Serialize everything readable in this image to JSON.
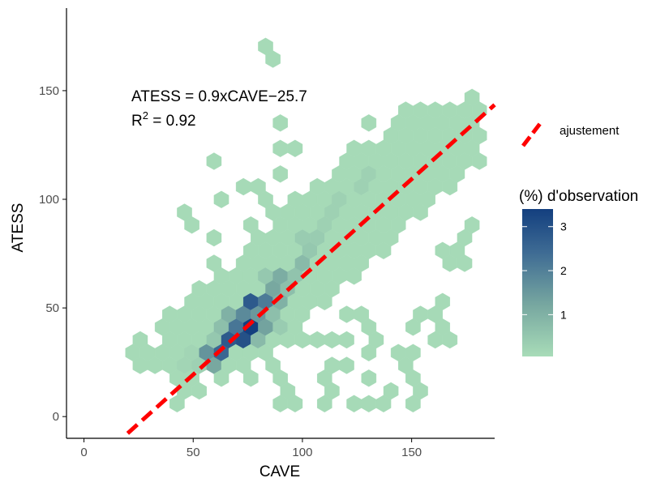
{
  "chart_data": {
    "type": "heatmap",
    "subtype": "hexbin",
    "xlabel": "CAVE",
    "ylabel": "ATESS",
    "xlim": [
      -8,
      188
    ],
    "ylim": [
      -10,
      188
    ],
    "x_ticks": [
      0,
      50,
      100,
      150
    ],
    "y_ticks": [
      0,
      50,
      100,
      150
    ],
    "annotation": {
      "equation": "ATESS = 0.9xCAVE−25.7",
      "r2_prefix": "R",
      "r2_sup": "2",
      "r2_value": " = 0.92"
    },
    "fit_line": {
      "name": "ajustement",
      "slope": 0.9,
      "intercept": -25.7,
      "x_range": [
        20,
        188
      ],
      "color": "#ff0000"
    },
    "legend": {
      "line_label": "ajustement",
      "color_title": "(%) d'observation",
      "color_ticks": [
        1,
        2,
        3
      ],
      "color_range": [
        0.05,
        3.4
      ],
      "color_low": "#a8dcb8",
      "color_high": "#133f7f",
      "placement": "right"
    },
    "grid": false,
    "hex_cells": [
      [
        85,
        168,
        0.1
      ],
      [
        88,
        162,
        0.1
      ],
      [
        92,
        138,
        0.1
      ],
      [
        130,
        138,
        0.1
      ],
      [
        138,
        132,
        0.1
      ],
      [
        154,
        128,
        0.1
      ],
      [
        165,
        123,
        0.1
      ],
      [
        171,
        128,
        0.1
      ],
      [
        176,
        133,
        0.1
      ],
      [
        180,
        138,
        0.1
      ],
      [
        171,
        143,
        0.1
      ],
      [
        176,
        148,
        0.1
      ],
      [
        160,
        143,
        0.1
      ],
      [
        92,
        125,
        0.1
      ],
      [
        100,
        125,
        0.1
      ],
      [
        60,
        118,
        0.1
      ],
      [
        92,
        112,
        0.1
      ],
      [
        105,
        107,
        0.1
      ],
      [
        130,
        123,
        0.1
      ],
      [
        138,
        118,
        0.1
      ],
      [
        45,
        93,
        0.1
      ],
      [
        50,
        88,
        0.1
      ],
      [
        60,
        73,
        0.1
      ],
      [
        60,
        83,
        0.1
      ],
      [
        66,
        98,
        0.1
      ],
      [
        70,
        103,
        0.1
      ],
      [
        75,
        88,
        0.1
      ],
      [
        80,
        98,
        0.1
      ],
      [
        80,
        103,
        0.1
      ],
      [
        85,
        93,
        0.1
      ],
      [
        88,
        78,
        0.1
      ],
      [
        95,
        93,
        0.1
      ],
      [
        178,
        88,
        0.1
      ],
      [
        174,
        83,
        0.1
      ],
      [
        174,
        78,
        0.1
      ],
      [
        164,
        76,
        0.1
      ],
      [
        176,
        72,
        0.1
      ],
      [
        170,
        68,
        0.1
      ],
      [
        36,
        48,
        0.1
      ],
      [
        38,
        38,
        0.1
      ],
      [
        42,
        32,
        0.1
      ],
      [
        30,
        32,
        0.1
      ],
      [
        35,
        28,
        0.1
      ],
      [
        24,
        33,
        0.1
      ],
      [
        20,
        31,
        0.1
      ],
      [
        27,
        26,
        0.1
      ],
      [
        30,
        25,
        0.1
      ],
      [
        120,
        48,
        0.1
      ],
      [
        130,
        48,
        0.1
      ],
      [
        130,
        40,
        0.1
      ],
      [
        136,
        35,
        0.1
      ],
      [
        142,
        32,
        0.1
      ],
      [
        150,
        40,
        0.1
      ],
      [
        155,
        48,
        0.1
      ],
      [
        160,
        45,
        0.1
      ],
      [
        165,
        50,
        0.1
      ],
      [
        165,
        40,
        0.1
      ],
      [
        160,
        35,
        0.1
      ],
      [
        165,
        33,
        0.1
      ],
      [
        95,
        38,
        0.1
      ],
      [
        100,
        33,
        0.1
      ],
      [
        108,
        38,
        0.1
      ],
      [
        112,
        33,
        0.1
      ],
      [
        118,
        38,
        0.1
      ],
      [
        112,
        26,
        0.1
      ],
      [
        120,
        26,
        0.1
      ],
      [
        128,
        28,
        0.1
      ],
      [
        145,
        25,
        0.1
      ],
      [
        148,
        18,
        0.1
      ],
      [
        150,
        28,
        0.1
      ],
      [
        90,
        16,
        0.1
      ],
      [
        95,
        12,
        0.1
      ],
      [
        90,
        8,
        0.1
      ],
      [
        100,
        8,
        0.1
      ],
      [
        108,
        8,
        0.1
      ],
      [
        112,
        15,
        0.1
      ],
      [
        115,
        10,
        0.1
      ],
      [
        125,
        8,
        0.1
      ],
      [
        130,
        15,
        0.1
      ],
      [
        132,
        8,
        0.1
      ],
      [
        138,
        8,
        0.1
      ],
      [
        140,
        12,
        0.1
      ],
      [
        150,
        8,
        0.1
      ],
      [
        155,
        13,
        0.1
      ],
      [
        40,
        18,
        0.1
      ],
      [
        45,
        13,
        0.1
      ],
      [
        50,
        13,
        0.1
      ],
      [
        55,
        13,
        0.1
      ],
      [
        45,
        8,
        0.1
      ],
      [
        52,
        20,
        0.1
      ],
      [
        38,
        23,
        0.1
      ],
      [
        80,
        28,
        0.1
      ],
      [
        85,
        25,
        0.1
      ],
      [
        88,
        20,
        0.1
      ],
      [
        78,
        20,
        0.1
      ],
      [
        70,
        25,
        0.1
      ],
      [
        65,
        20,
        0.1
      ],
      [
        50,
        30,
        0.2
      ],
      [
        55,
        28,
        0.3
      ],
      [
        55,
        23,
        0.3
      ],
      [
        48,
        25,
        0.2
      ],
      [
        58,
        38,
        0.4
      ],
      [
        60,
        33,
        0.5
      ],
      [
        58,
        28,
        1.6
      ],
      [
        60,
        25,
        1.2
      ],
      [
        62,
        31,
        2.5
      ],
      [
        64,
        38,
        1.6
      ],
      [
        66,
        28,
        2.0
      ],
      [
        68,
        35,
        2.8
      ],
      [
        70,
        42,
        2.2
      ],
      [
        72,
        38,
        3.0
      ],
      [
        72,
        47,
        1.8
      ],
      [
        76,
        44,
        3.4
      ],
      [
        76,
        33,
        1.0
      ],
      [
        78,
        50,
        2.8
      ],
      [
        80,
        42,
        1.3
      ],
      [
        80,
        55,
        1.8
      ],
      [
        82,
        46,
        1.5
      ],
      [
        84,
        52,
        2.1
      ],
      [
        86,
        57,
        1.2
      ],
      [
        88,
        50,
        1.0
      ],
      [
        90,
        55,
        1.0
      ],
      [
        92,
        62,
        1.1
      ],
      [
        86,
        45,
        0.6
      ],
      [
        90,
        63,
        0.6
      ],
      [
        94,
        58,
        0.7
      ],
      [
        96,
        66,
        0.6
      ],
      [
        98,
        72,
        0.8
      ],
      [
        100,
        70,
        0.5
      ],
      [
        104,
        77,
        0.5
      ],
      [
        102,
        80,
        0.4
      ],
      [
        108,
        82,
        0.4
      ],
      [
        112,
        88,
        0.3
      ],
      [
        116,
        92,
        0.3
      ],
      [
        120,
        98,
        0.3
      ],
      [
        124,
        104,
        0.3
      ],
      [
        128,
        110,
        0.3
      ],
      [
        74,
        40,
        1.0
      ],
      [
        68,
        45,
        1.0
      ],
      [
        66,
        40,
        0.7
      ],
      [
        84,
        58,
        0.8
      ],
      [
        86,
        62,
        0.5
      ],
      [
        74,
        52,
        0.5
      ],
      [
        70,
        48,
        0.6
      ],
      [
        64,
        35,
        0.8
      ],
      [
        78,
        38,
        0.8
      ],
      [
        82,
        38,
        0.6
      ],
      [
        88,
        47,
        0.7
      ],
      [
        90,
        43,
        0.4
      ]
    ],
    "bulk_regions": [
      {
        "x_range": [
          38,
          98
        ],
        "y_range": [
          22,
          82
        ],
        "band": 24,
        "density": 0.1
      },
      {
        "x_range": [
          55,
          140
        ],
        "y_range": [
          30,
          110
        ],
        "band": 26,
        "density": 0.1
      },
      {
        "x_range": [
          100,
          182
        ],
        "y_range": [
          60,
          142
        ],
        "band": 24,
        "density": 0.1
      }
    ]
  }
}
